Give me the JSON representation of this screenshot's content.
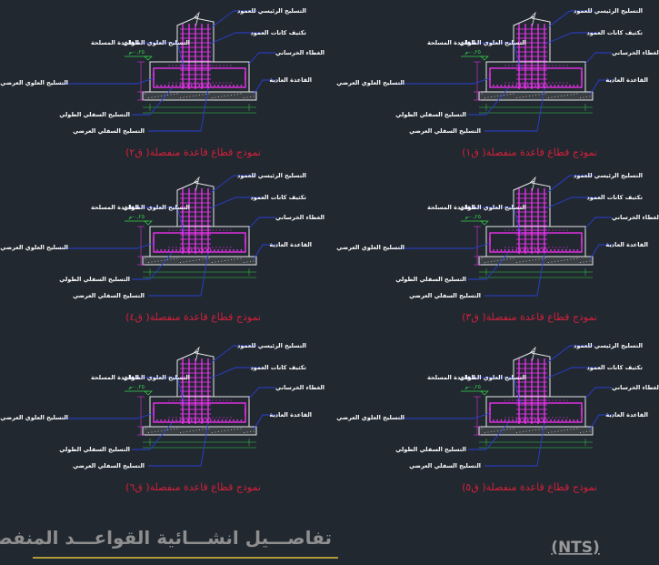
{
  "footings": [
    {
      "caption": "نموذج قطاع قاعدة منفصلة( ق٢)",
      "level": "٠,٢٥-م"
    },
    {
      "caption": "نموذج قطاع قاعدة منفصلة( ق١)",
      "level": "٠,٢٥-م"
    },
    {
      "caption": "نموذج قطاع قاعدة منفصلة( ق٤)",
      "level": "٠,٢٥-م"
    },
    {
      "caption": "نموذج قطاع قاعدة منفصلة( ق٣)",
      "level": "٠,٢٥-م"
    },
    {
      "caption": "نموذج قطاع قاعدة منفصلة( ق٦)",
      "level": "٠,٢٥-م"
    },
    {
      "caption": "نموذج قطاع قاعدة منفصلة( ق٥)",
      "level": "٠,٢٥-م"
    }
  ],
  "labels": {
    "column_main_rebar": "التسليح الرئيسي للعمود",
    "column_stirrups": "تكثيف كانات العمود",
    "top_long_rebar": "التسليح العلوي الطولي",
    "rc_footing": "القاعدة المسلحة",
    "side_cover": "الغطاء الخرساني",
    "plain_footing": "القاعدة العادية",
    "top_transverse_rebar": "التسليح العلوي العرضي",
    "bottom_long_rebar": "التسليح السفلي الطولي",
    "bottom_transverse_rebar": "التسليح السفلي العرضي"
  },
  "sheet": {
    "title": "تفاصـــيل انشـــائية القواعـــد المنفصـــلة",
    "scale_note": "(NTS)"
  },
  "colors": {
    "background": "#212830",
    "rebar": "#ff33ff",
    "leader": "#2a3fd8",
    "caption": "#d4203a",
    "level": "#37d24a",
    "outline": "#e8e8e8",
    "title": "#8e8e8e",
    "underline": "#d9c23a"
  }
}
